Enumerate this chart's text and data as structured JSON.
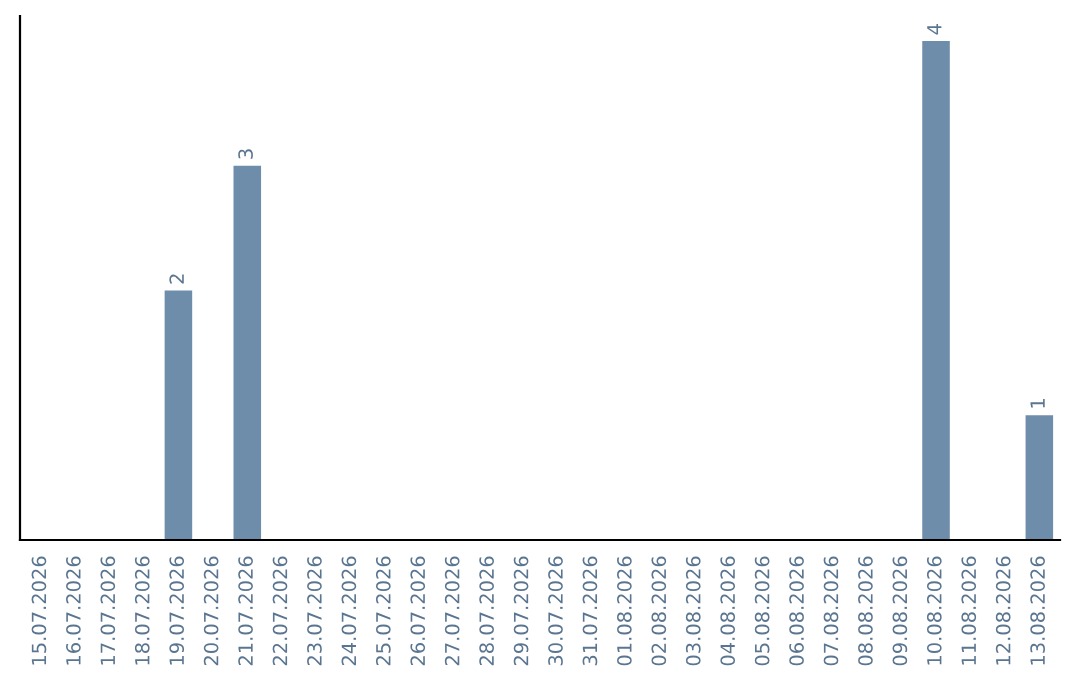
{
  "chart_data": {
    "type": "bar",
    "categories": [
      "15.07.2026",
      "16.07.2026",
      "17.07.2026",
      "18.07.2026",
      "19.07.2026",
      "20.07.2026",
      "21.07.2026",
      "22.07.2026",
      "23.07.2026",
      "24.07.2026",
      "25.07.2026",
      "26.07.2026",
      "27.07.2026",
      "28.07.2026",
      "29.07.2026",
      "30.07.2026",
      "31.07.2026",
      "01.08.2026",
      "02.08.2026",
      "03.08.2026",
      "04.08.2026",
      "05.08.2026",
      "06.08.2026",
      "07.08.2026",
      "08.08.2026",
      "09.08.2026",
      "10.08.2026",
      "11.08.2026",
      "12.08.2026",
      "13.08.2026"
    ],
    "values": [
      0,
      0,
      0,
      0,
      2,
      0,
      3,
      0,
      0,
      0,
      0,
      0,
      0,
      0,
      0,
      0,
      0,
      0,
      0,
      0,
      0,
      0,
      0,
      0,
      0,
      0,
      4,
      0,
      0,
      1
    ],
    "value_labels": [
      null,
      null,
      null,
      null,
      "2",
      null,
      "3",
      null,
      null,
      null,
      null,
      null,
      null,
      null,
      null,
      null,
      null,
      null,
      null,
      null,
      null,
      null,
      null,
      null,
      null,
      null,
      "4",
      null,
      null,
      "1"
    ],
    "color": "#6e8dab",
    "tick_labels": "x",
    "grid": false,
    "legend": false
  }
}
